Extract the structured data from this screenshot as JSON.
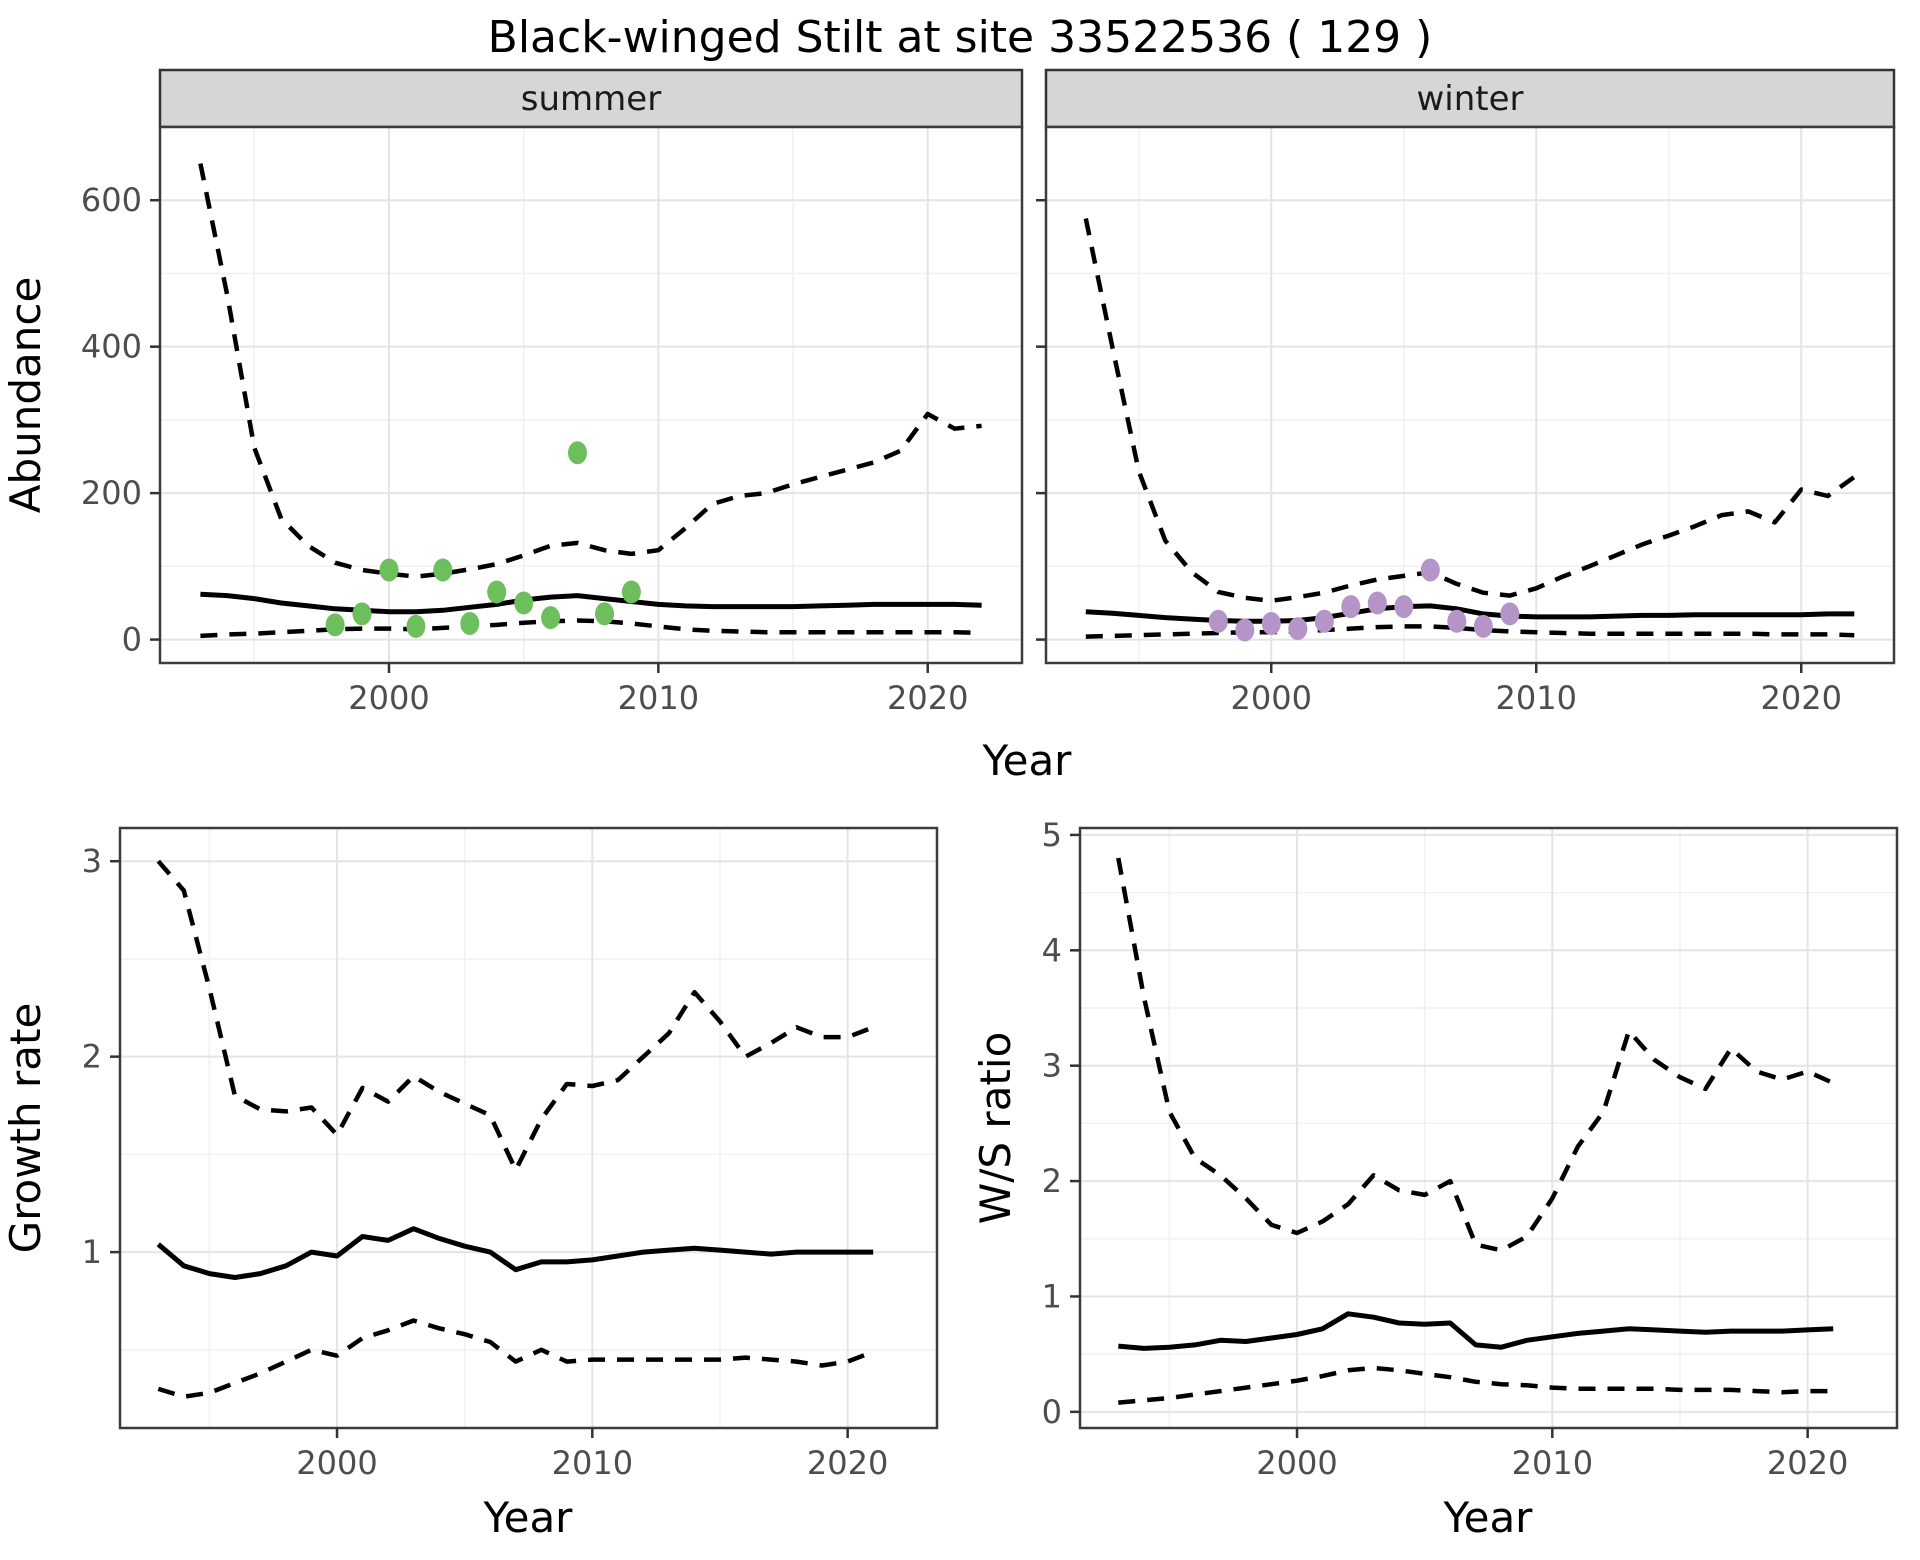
{
  "title": "Black-winged Stilt at site 33522536 ( 129 )",
  "axis_titles": {
    "abundance": "Abundance",
    "growth_rate": "Growth rate",
    "ws_ratio": "W/S ratio",
    "top_x": "Year",
    "bottom_left_x": "Year",
    "bottom_right_x": "Year"
  },
  "colors": {
    "summer_points": "#6cbf5c",
    "winter_points": "#b594c8",
    "line": "#000000",
    "strip_fill": "#d6d6d6",
    "panel_border": "#3c3c3c",
    "grid_major": "#e4e4e4",
    "grid_minor": "#f1f1f1",
    "tick_text": "#4d4d4d"
  },
  "chart_data": [
    {
      "id": "abundance-summer",
      "type": "line",
      "strip_label": "summer",
      "x_domain": [
        1991.5,
        2023.5
      ],
      "y_domain": [
        -32,
        700
      ],
      "x_ticks": [
        2000,
        2010,
        2020
      ],
      "x_minor": [
        1995,
        2005,
        2015
      ],
      "y_ticks": [
        0,
        200,
        400,
        600
      ],
      "y_minor": [
        100,
        300,
        500
      ],
      "show_y_tick_labels": true,
      "x": [
        1993,
        1994,
        1995,
        1996,
        1997,
        1998,
        1999,
        2000,
        2001,
        2002,
        2003,
        2004,
        2005,
        2006,
        2007,
        2008,
        2009,
        2010,
        2011,
        2012,
        2013,
        2014,
        2015,
        2016,
        2017,
        2018,
        2019,
        2020,
        2021,
        2022
      ],
      "series": [
        {
          "name": "upper-95ci",
          "style": "dashed",
          "values": [
            650,
            470,
            262,
            165,
            128,
            105,
            95,
            90,
            86,
            90,
            96,
            103,
            115,
            128,
            132,
            122,
            117,
            122,
            152,
            185,
            196,
            200,
            212,
            222,
            232,
            242,
            258,
            308,
            288,
            292
          ]
        },
        {
          "name": "median",
          "style": "solid",
          "values": [
            62,
            60,
            56,
            50,
            46,
            42,
            40,
            38,
            38,
            40,
            44,
            48,
            54,
            58,
            60,
            56,
            52,
            48,
            46,
            45,
            45,
            45,
            45,
            46,
            47,
            48,
            48,
            48,
            48,
            47
          ]
        },
        {
          "name": "lower-95ci",
          "style": "dashed",
          "values": [
            5,
            7,
            8,
            10,
            12,
            14,
            15,
            15,
            14,
            16,
            18,
            20,
            23,
            25,
            26,
            25,
            22,
            18,
            14,
            12,
            11,
            10,
            10,
            10,
            10,
            10,
            10,
            10,
            10,
            9
          ]
        }
      ],
      "points": {
        "name": "observed-counts-summer",
        "color": "#6cbf5c",
        "x": [
          1998,
          1999,
          2000,
          2001,
          2002,
          2003,
          2004,
          2005,
          2006,
          2007,
          2008,
          2009
        ],
        "y": [
          20,
          35,
          95,
          18,
          95,
          22,
          65,
          50,
          30,
          255,
          35,
          65
        ]
      }
    },
    {
      "id": "abundance-winter",
      "type": "line",
      "strip_label": "winter",
      "x_domain": [
        1991.5,
        2023.5
      ],
      "y_domain": [
        -32,
        700
      ],
      "x_ticks": [
        2000,
        2010,
        2020
      ],
      "x_minor": [
        1995,
        2005,
        2015
      ],
      "y_ticks": [
        0,
        200,
        400,
        600
      ],
      "y_minor": [
        100,
        300,
        500
      ],
      "show_y_tick_labels": false,
      "x": [
        1993,
        1994,
        1995,
        1996,
        1997,
        1998,
        1999,
        2000,
        2001,
        2002,
        2003,
        2004,
        2005,
        2006,
        2007,
        2008,
        2009,
        2010,
        2011,
        2012,
        2013,
        2014,
        2015,
        2016,
        2017,
        2018,
        2019,
        2020,
        2021,
        2022
      ],
      "series": [
        {
          "name": "upper-95ci",
          "style": "dashed",
          "values": [
            575,
            400,
            230,
            135,
            92,
            65,
            57,
            53,
            58,
            64,
            74,
            82,
            87,
            92,
            76,
            64,
            60,
            70,
            86,
            100,
            115,
            130,
            142,
            155,
            170,
            175,
            160,
            205,
            196,
            222
          ]
        },
        {
          "name": "median",
          "style": "solid",
          "values": [
            38,
            36,
            33,
            30,
            28,
            26,
            25,
            25,
            26,
            30,
            36,
            42,
            45,
            46,
            42,
            35,
            32,
            31,
            31,
            31,
            32,
            33,
            33,
            34,
            34,
            34,
            34,
            34,
            35,
            35
          ]
        },
        {
          "name": "lower-95ci",
          "style": "dashed",
          "values": [
            4,
            5,
            6,
            7,
            8,
            9,
            10,
            10,
            11,
            13,
            15,
            17,
            18,
            18,
            16,
            13,
            11,
            10,
            9,
            8,
            8,
            8,
            8,
            8,
            8,
            8,
            7,
            7,
            7,
            6
          ]
        }
      ],
      "points": {
        "name": "observed-counts-winter",
        "color": "#b594c8",
        "x": [
          1998,
          1999,
          2000,
          2001,
          2002,
          2003,
          2004,
          2005,
          2006,
          2007,
          2008,
          2009
        ],
        "y": [
          25,
          13,
          22,
          15,
          25,
          45,
          50,
          45,
          95,
          25,
          18,
          35
        ]
      }
    },
    {
      "id": "growth-rate",
      "type": "line",
      "strip_label": "",
      "x_domain": [
        1991.5,
        2023.5
      ],
      "y_domain": [
        0.1,
        3.17
      ],
      "x_ticks": [
        2000,
        2010,
        2020
      ],
      "x_minor": [
        1995,
        2005,
        2015
      ],
      "y_ticks": [
        1,
        2,
        3
      ],
      "y_minor": [
        0.5,
        1.5,
        2.5
      ],
      "show_y_tick_labels": true,
      "x": [
        1993,
        1994,
        1995,
        1996,
        1997,
        1998,
        1999,
        2000,
        2001,
        2002,
        2003,
        2004,
        2005,
        2006,
        2007,
        2008,
        2009,
        2010,
        2011,
        2012,
        2013,
        2014,
        2015,
        2016,
        2017,
        2018,
        2019,
        2020,
        2021
      ],
      "series": [
        {
          "name": "upper-95ci",
          "style": "dashed",
          "values": [
            3.0,
            2.85,
            2.35,
            1.8,
            1.73,
            1.72,
            1.74,
            1.6,
            1.84,
            1.77,
            1.9,
            1.82,
            1.76,
            1.7,
            1.42,
            1.68,
            1.86,
            1.85,
            1.88,
            2.0,
            2.12,
            2.33,
            2.18,
            2.0,
            2.07,
            2.15,
            2.1,
            2.1,
            2.15
          ]
        },
        {
          "name": "median",
          "style": "solid",
          "values": [
            1.04,
            0.93,
            0.89,
            0.87,
            0.89,
            0.93,
            1.0,
            0.98,
            1.08,
            1.06,
            1.12,
            1.07,
            1.03,
            1.0,
            0.91,
            0.95,
            0.95,
            0.96,
            0.98,
            1.0,
            1.01,
            1.02,
            1.01,
            1.0,
            0.99,
            1.0,
            1.0,
            1.0,
            1.0
          ]
        },
        {
          "name": "lower-95ci",
          "style": "dashed",
          "values": [
            0.3,
            0.26,
            0.28,
            0.33,
            0.38,
            0.44,
            0.5,
            0.47,
            0.56,
            0.6,
            0.65,
            0.61,
            0.58,
            0.54,
            0.44,
            0.5,
            0.44,
            0.45,
            0.45,
            0.45,
            0.45,
            0.45,
            0.45,
            0.46,
            0.45,
            0.44,
            0.42,
            0.44,
            0.49
          ]
        }
      ],
      "points": null
    },
    {
      "id": "ws-ratio",
      "type": "line",
      "strip_label": "",
      "x_domain": [
        1991.5,
        2023.5
      ],
      "y_domain": [
        -0.14,
        5.06
      ],
      "x_ticks": [
        2000,
        2010,
        2020
      ],
      "x_minor": [
        1995,
        2005,
        2015
      ],
      "y_ticks": [
        0,
        1,
        2,
        3,
        4,
        5
      ],
      "y_minor": [
        0.5,
        1.5,
        2.5,
        3.5,
        4.5
      ],
      "show_y_tick_labels": true,
      "x": [
        1993,
        1994,
        1995,
        1996,
        1997,
        1998,
        1999,
        2000,
        2001,
        2002,
        2003,
        2004,
        2005,
        2006,
        2007,
        2008,
        2009,
        2010,
        2011,
        2012,
        2013,
        2014,
        2015,
        2016,
        2017,
        2018,
        2019,
        2020,
        2021
      ],
      "series": [
        {
          "name": "upper-95ci",
          "style": "dashed",
          "values": [
            4.8,
            3.6,
            2.6,
            2.2,
            2.05,
            1.85,
            1.62,
            1.55,
            1.65,
            1.8,
            2.05,
            1.92,
            1.88,
            2.0,
            1.45,
            1.4,
            1.52,
            1.85,
            2.3,
            2.6,
            3.3,
            3.05,
            2.9,
            2.8,
            3.15,
            2.95,
            2.88,
            2.95,
            2.85
          ]
        },
        {
          "name": "median",
          "style": "solid",
          "values": [
            0.57,
            0.55,
            0.56,
            0.58,
            0.62,
            0.61,
            0.64,
            0.67,
            0.72,
            0.85,
            0.82,
            0.77,
            0.76,
            0.77,
            0.58,
            0.56,
            0.62,
            0.65,
            0.68,
            0.7,
            0.72,
            0.71,
            0.7,
            0.69,
            0.7,
            0.7,
            0.7,
            0.71,
            0.72
          ]
        },
        {
          "name": "lower-95ci",
          "style": "dashed",
          "values": [
            0.08,
            0.1,
            0.12,
            0.15,
            0.18,
            0.21,
            0.24,
            0.27,
            0.31,
            0.36,
            0.38,
            0.36,
            0.33,
            0.3,
            0.26,
            0.24,
            0.23,
            0.21,
            0.2,
            0.2,
            0.2,
            0.2,
            0.19,
            0.19,
            0.19,
            0.18,
            0.17,
            0.18,
            0.18
          ]
        }
      ],
      "points": null
    }
  ]
}
